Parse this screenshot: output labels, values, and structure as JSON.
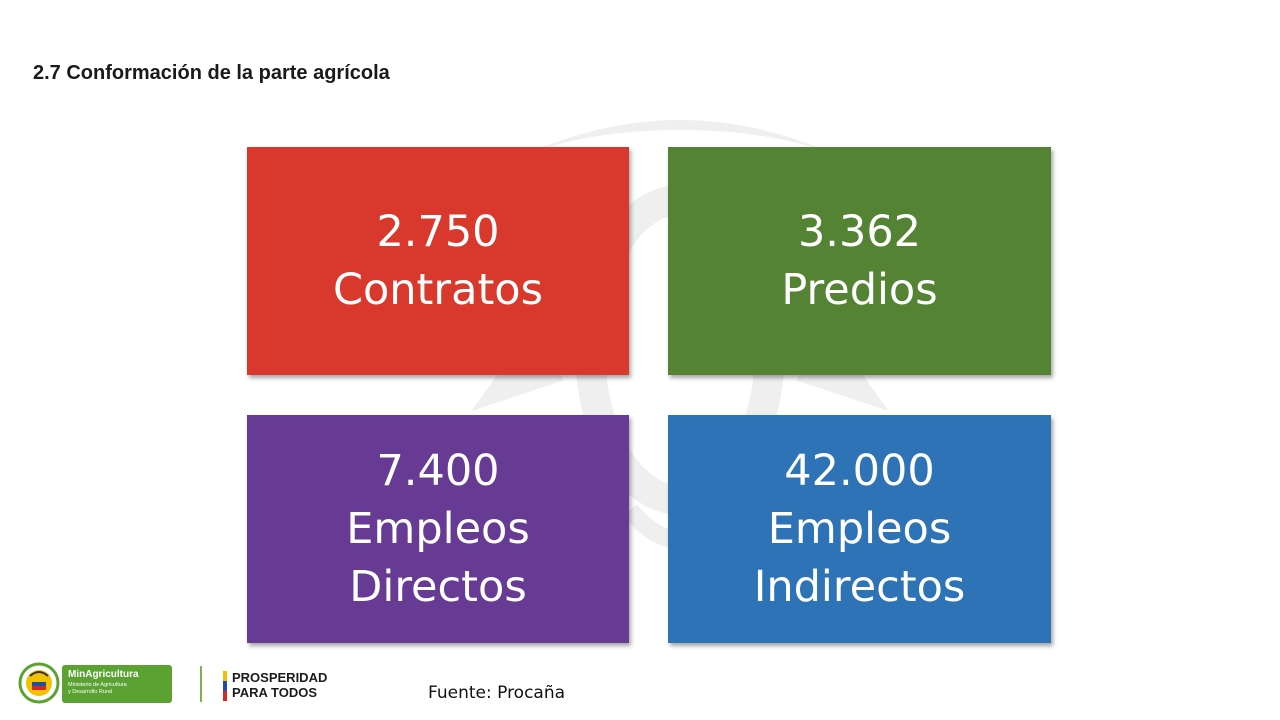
{
  "slide": {
    "title": "2.7  Conformación de la parte agrícola",
    "source": "Fuente: Procaña"
  },
  "tiles": [
    {
      "number": "2.750",
      "label_lines": [
        "Contratos"
      ],
      "color": "#d9392c"
    },
    {
      "number": "3.362",
      "label_lines": [
        "Predios"
      ],
      "color": "#548334"
    },
    {
      "number": "7.400",
      "label_lines": [
        "Empleos",
        "Directos"
      ],
      "color": "#673b93"
    },
    {
      "number": "42.000",
      "label_lines": [
        "Empleos",
        "Indirectos"
      ],
      "color": "#2e73b5"
    }
  ],
  "logos": {
    "ministry_name": "MinAgricultura",
    "ministry_subtitle": [
      "Ministerio de Agricultura",
      "y Desarrollo Rural"
    ],
    "campaign_line1": "PROSPERIDAD",
    "campaign_line2": "PARA TODOS",
    "brand_color": "#5aa332"
  }
}
